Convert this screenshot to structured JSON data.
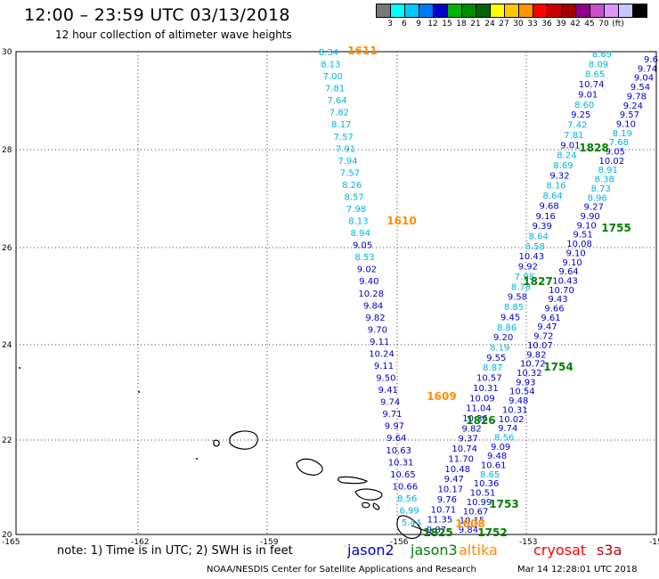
{
  "header": {
    "title": "12:00 – 23:59 UTC 03/13/2018",
    "subtitle": "12 hour collection of altimeter wave heights"
  },
  "colorbar": {
    "colors": [
      "#787878",
      "#00ffff",
      "#00c8ff",
      "#0078ff",
      "#0000c8",
      "#00b400",
      "#008c00",
      "#006400",
      "#ffff00",
      "#ffc800",
      "#ff9600",
      "#ff0000",
      "#c80000",
      "#a00000",
      "#8c008c",
      "#c850c8",
      "#dc96ff",
      "#c8c8ff",
      "#000000"
    ],
    "ticks": [
      "3",
      "6",
      "9",
      "12",
      "15",
      "18",
      "21",
      "24",
      "27",
      "30",
      "33",
      "36",
      "39",
      "42",
      "45",
      "70",
      "(ft)"
    ]
  },
  "map": {
    "lat_labels": [
      "30",
      "28",
      "26",
      "24",
      "22",
      "20"
    ],
    "lon_labels": [
      "-165",
      "-162",
      "-159",
      "-156",
      "-153",
      "-15"
    ]
  },
  "passes": [
    {
      "label": "1611",
      "color": "#ff8c00"
    },
    {
      "label": "1610",
      "color": "#ff8c00"
    },
    {
      "label": "1609",
      "color": "#ff8c00"
    },
    {
      "label": "1608",
      "color": "#ff8c00"
    },
    {
      "label": "1828",
      "color": "#008000"
    },
    {
      "label": "1827",
      "color": "#008000"
    },
    {
      "label": "1826",
      "color": "#008000"
    },
    {
      "label": "1825",
      "color": "#008000"
    },
    {
      "label": "1755",
      "color": "#008000"
    },
    {
      "label": "1754",
      "color": "#008000"
    },
    {
      "label": "1753",
      "color": "#008000"
    },
    {
      "label": "1752",
      "color": "#008000"
    }
  ],
  "tracks": {
    "track_a": [
      "8.34",
      "8.13",
      "7.00",
      "7.81",
      "7.64",
      "7.82",
      "8.17",
      "7.57",
      "7.91",
      "7.94",
      "7.57",
      "8.26",
      "8.57",
      "7.98",
      "8.13",
      "8.94",
      "9.05",
      "8.53",
      "9.02",
      "9.40",
      "10.28",
      "9.84",
      "9.82",
      "9.70",
      "9.11",
      "10.24",
      "9.11",
      "9.50",
      "9.41",
      "9.74",
      "9.71",
      "9.97",
      "9.64",
      "10.63",
      "10.31",
      "10.65",
      "10.66",
      "8.56",
      "6.99",
      "5.44"
    ],
    "track_b": [
      "8.69",
      "8.09",
      "8.65",
      "10.74",
      "9.01",
      "8.60",
      "9.25",
      "7.42",
      "7.81",
      "9.01",
      "8.24",
      "8.69",
      "9.32",
      "8.16",
      "8.64",
      "9.68",
      "9.16",
      "9.39",
      "8.64",
      "8.58",
      "10.43",
      "9.92",
      "7.98",
      "8.78",
      "9.58",
      "8.85",
      "9.45",
      "8.86",
      "9.20",
      "8.19",
      "9.55",
      "8.87",
      "10.57",
      "10.31",
      "10.09",
      "11.04",
      "10.36",
      "9.82",
      "9.37",
      "10.74",
      "11.70",
      "10.48",
      "9.47",
      "10.17",
      "9.76",
      "10.71",
      "11.35",
      "9.87"
    ],
    "track_c": [
      "9.6",
      "9.74",
      "9.04",
      "9.54",
      "9.78",
      "9.24",
      "9.57",
      "9.10",
      "8.19",
      "7.68",
      "9.05",
      "10.02",
      "8.91",
      "8.38",
      "8.73",
      "8.96",
      "9.27",
      "9.90",
      "9.10",
      "9.51",
      "10.08",
      "9.10",
      "9.10",
      "9.64",
      "10.43",
      "10.70",
      "9.43",
      "9.66",
      "9.61",
      "9.47",
      "9.72",
      "10.07",
      "9.82",
      "10.72",
      "10.32",
      "9.93",
      "10.54",
      "9.48",
      "10.31",
      "10.02",
      "9.74",
      "8.56",
      "9.09",
      "9.48",
      "10.61",
      "8.65",
      "10.36",
      "10.51",
      "10.99",
      "10.67",
      "10.15",
      "9.84"
    ]
  },
  "footer": {
    "note": "note: 1) Time is in UTC; 2) SWH is in feet",
    "legend": [
      {
        "name": "jason2",
        "color": "#0000c8"
      },
      {
        "name": "jason3",
        "color": "#008000"
      },
      {
        "name": "altika",
        "color": "#ff8c00"
      },
      {
        "name": "cryosat",
        "color": "#ff0000"
      },
      {
        "name": "s3a",
        "color": "#c00000"
      }
    ],
    "credit": "NOAA/NESDIS Center for Satellite Applications and Research",
    "timestamp": "Mar 14 12:28:01 UTC 2018"
  }
}
